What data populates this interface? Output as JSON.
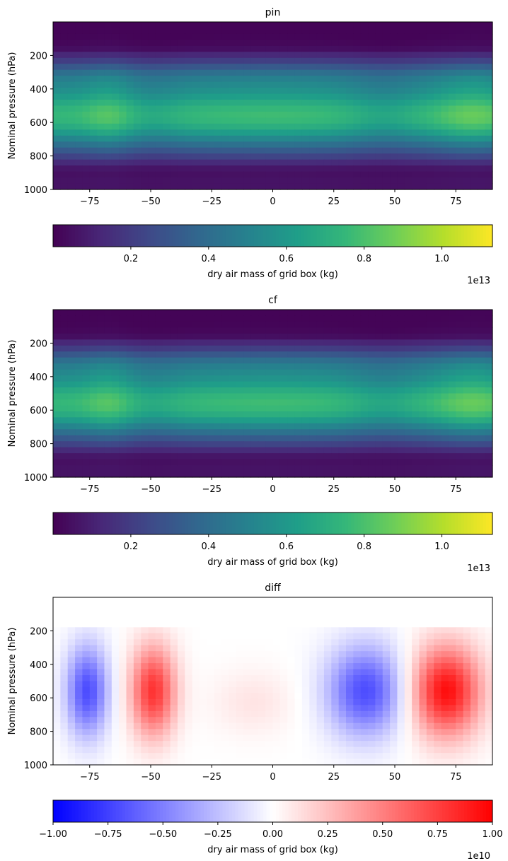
{
  "chart_data": [
    {
      "type": "heatmap",
      "title": "pin",
      "ylabel": "Nominal pressure (hPa)",
      "xlabel": "",
      "xlim": [
        -90,
        90
      ],
      "ylim": [
        1000,
        0
      ],
      "xticks": [
        "−75",
        "−50",
        "−25",
        "0",
        "25",
        "50",
        "75"
      ],
      "xtick_values": [
        -75,
        -50,
        -25,
        0,
        25,
        50,
        75
      ],
      "yticks": [
        "200",
        "400",
        "600",
        "800",
        "1000"
      ],
      "ytick_values": [
        200,
        400,
        600,
        800,
        1000
      ],
      "colormap": "viridis",
      "field": "dry air mass (kg)",
      "colorbar": {
        "label": "dry air mass of grid box (kg)",
        "ticks": [
          "0.2",
          "0.4",
          "0.6",
          "0.8",
          "1.0"
        ],
        "tick_values": [
          0.2,
          0.4,
          0.6,
          0.8,
          1.0
        ],
        "range": [
          0.0,
          1.13
        ],
        "exponent": "1e13"
      }
    },
    {
      "type": "heatmap",
      "title": "cf",
      "ylabel": "Nominal pressure (hPa)",
      "xlabel": "",
      "xlim": [
        -90,
        90
      ],
      "ylim": [
        1000,
        0
      ],
      "xticks": [
        "−75",
        "−50",
        "−25",
        "0",
        "25",
        "50",
        "75"
      ],
      "xtick_values": [
        -75,
        -50,
        -25,
        0,
        25,
        50,
        75
      ],
      "yticks": [
        "200",
        "400",
        "600",
        "800",
        "1000"
      ],
      "ytick_values": [
        200,
        400,
        600,
        800,
        1000
      ],
      "colormap": "viridis",
      "field": "dry air mass (kg)",
      "colorbar": {
        "label": "dry air mass of grid box (kg)",
        "ticks": [
          "0.2",
          "0.4",
          "0.6",
          "0.8",
          "1.0"
        ],
        "tick_values": [
          0.2,
          0.4,
          0.6,
          0.8,
          1.0
        ],
        "range": [
          0.0,
          1.13
        ],
        "exponent": "1e13"
      }
    },
    {
      "type": "heatmap",
      "title": "diff",
      "ylabel": "Nominal pressure (hPa)",
      "xlabel": "",
      "xlim": [
        -90,
        90
      ],
      "ylim": [
        1000,
        0
      ],
      "xticks": [
        "−75",
        "−50",
        "−25",
        "0",
        "25",
        "50",
        "75"
      ],
      "xtick_values": [
        -75,
        -50,
        -25,
        0,
        25,
        50,
        75
      ],
      "yticks": [
        "200",
        "400",
        "600",
        "800",
        "1000"
      ],
      "ytick_values": [
        200,
        400,
        600,
        800,
        1000
      ],
      "colormap": "bwr",
      "field": "difference",
      "colorbar": {
        "label": "dry air mass of grid box (kg)",
        "ticks": [
          "−1.00",
          "−0.75",
          "−0.50",
          "−0.25",
          "0.00",
          "0.25",
          "0.50",
          "0.75",
          "1.00"
        ],
        "tick_values": [
          -1.0,
          -0.75,
          -0.5,
          -0.25,
          0.0,
          0.25,
          0.5,
          0.75,
          1.0
        ],
        "range": [
          -1.0,
          1.0
        ],
        "exponent": "1e10"
      }
    }
  ]
}
